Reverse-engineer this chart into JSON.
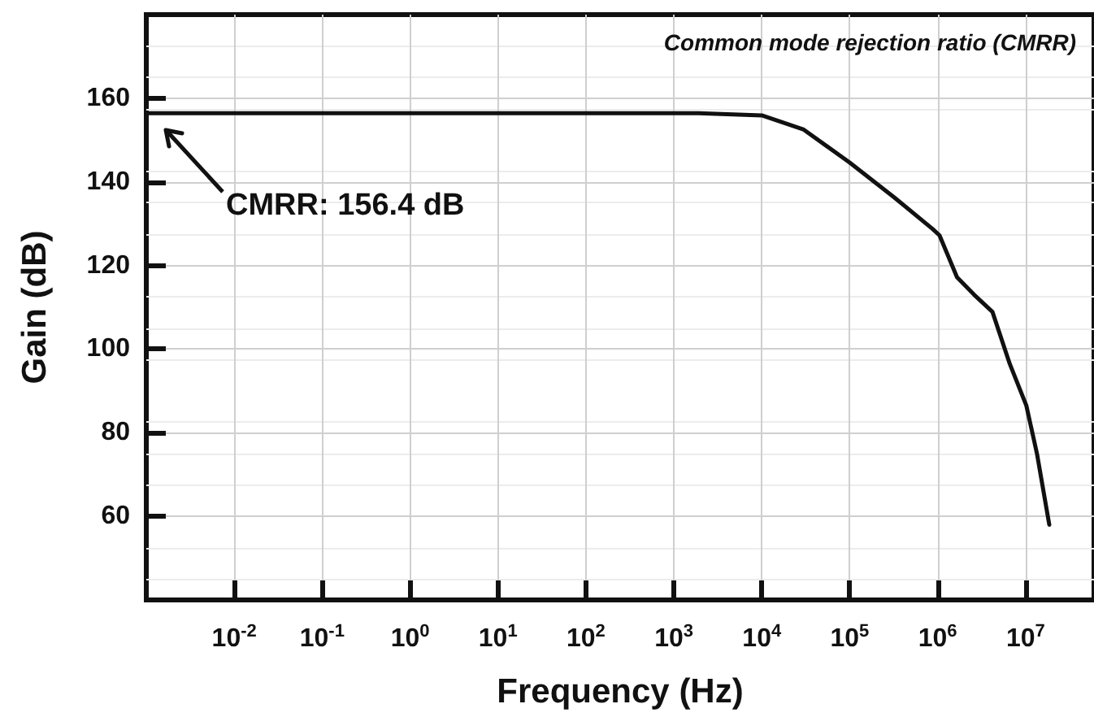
{
  "chart_data": {
    "type": "line",
    "title": "Common mode rejection ratio (CMRR)",
    "xlabel": "Frequency (Hz)",
    "ylabel": "Gain (dB)",
    "log": "x",
    "x": [
      0.001,
      0.01,
      0.1,
      1,
      10,
      100,
      1000,
      1900,
      10000,
      30000,
      100000,
      320000,
      870000,
      1050000,
      1660000,
      2600000,
      4200000,
      6600000,
      10200000,
      13500000,
      18600000
    ],
    "series": [
      {
        "color": "#111111",
        "values": [
          156.4,
          156.4,
          156.4,
          156.4,
          156.4,
          156.4,
          156.4,
          156.4,
          155.9,
          152.5,
          144.6,
          136.3,
          128.8,
          127.2,
          117.2,
          113,
          108.9,
          96.5,
          86.5,
          74.9,
          58
        ]
      }
    ],
    "xlim": [
      0.001,
      60000000
    ],
    "ylim": [
      40,
      180
    ],
    "xticks": [
      {
        "value": 0.01,
        "label": "10$^{-2}$"
      },
      {
        "value": 0.1,
        "label": "10$^{-1}$"
      },
      {
        "value": 1,
        "label": "10$^{0}$"
      },
      {
        "value": 10,
        "label": "10$^{1}$"
      },
      {
        "value": 100,
        "label": "10$^{2}$"
      },
      {
        "value": 1000,
        "label": "10$^{3}$"
      },
      {
        "value": 10000,
        "label": "10$^{4}$"
      },
      {
        "value": 100000,
        "label": "10$^{5}$"
      },
      {
        "value": 1000000,
        "label": "10$^{6}$"
      },
      {
        "value": 10000000,
        "label": "10$^{7}$"
      }
    ],
    "yticks": [
      60,
      80,
      100,
      120,
      140,
      160
    ],
    "grid": true,
    "marker": "none",
    "line_style": "solid",
    "annotations": [
      "CMRR: 156.4 dB"
    ]
  }
}
